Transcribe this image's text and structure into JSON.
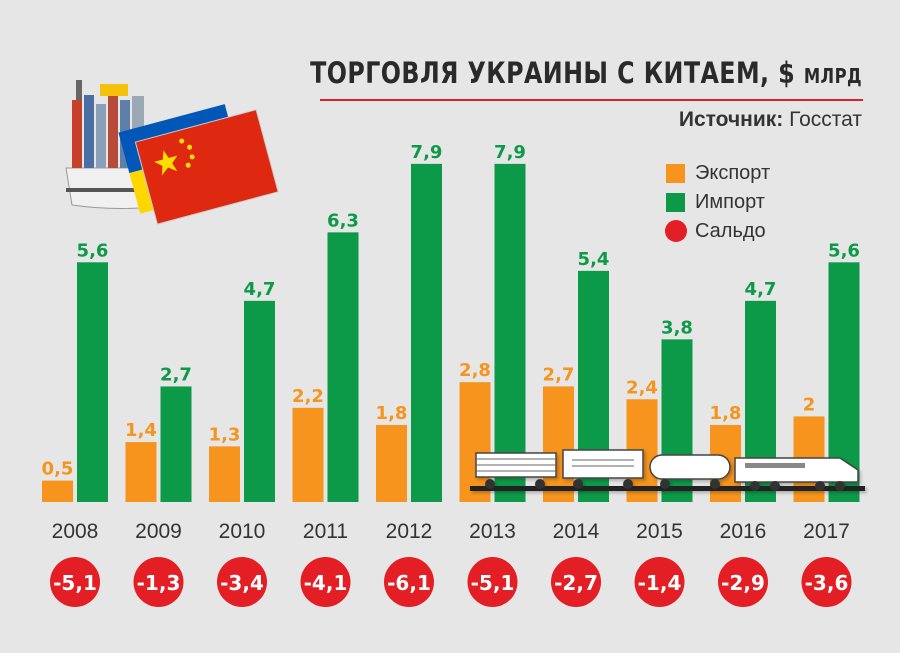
{
  "title": "ТОРГОВЛЯ УКРАИНЫ С КИТАЕМ, $",
  "title_unit": "МЛРД",
  "source_label": "Источник:",
  "source_value": "Госстат",
  "colors": {
    "export": "#f7941d",
    "import": "#0d9a48",
    "saldo": "#e31e24",
    "accent_rule": "#d8232a"
  },
  "legend": {
    "export": "Экспорт",
    "import": "Импорт",
    "saldo": "Сальдо"
  },
  "illustrations": [
    "container-ship-icon",
    "ukraine-flag-icon",
    "china-flag-icon",
    "freight-train-icon"
  ],
  "chart_data": {
    "type": "bar",
    "categories": [
      "2008",
      "2009",
      "2010",
      "2011",
      "2012",
      "2013",
      "2014",
      "2015",
      "2016",
      "2017"
    ],
    "series": [
      {
        "name": "Экспорт",
        "values": [
          0.5,
          1.4,
          1.3,
          2.2,
          1.8,
          2.8,
          2.7,
          2.4,
          1.8,
          2
        ],
        "labels": [
          "0,5",
          "1,4",
          "1,3",
          "2,2",
          "1,8",
          "2,8",
          "2,7",
          "2,4",
          "1,8",
          "2"
        ]
      },
      {
        "name": "Импорт",
        "values": [
          5.6,
          2.7,
          4.7,
          6.3,
          7.9,
          7.9,
          5.4,
          3.8,
          4.7,
          5.6
        ],
        "labels": [
          "5,6",
          "2,7",
          "4,7",
          "6,3",
          "7,9",
          "7,9",
          "5,4",
          "3,8",
          "4,7",
          "5,6"
        ]
      },
      {
        "name": "Сальдо",
        "values": [
          -5.1,
          -1.3,
          -3.4,
          -4.1,
          -6.1,
          -5.1,
          -2.7,
          -1.4,
          -2.9,
          -3.6
        ],
        "labels": [
          "-5,1",
          "-1,3",
          "-3,4",
          "-4,1",
          "-6,1",
          "-5,1",
          "-2,7",
          "-1,4",
          "-2,9",
          "-3,6"
        ]
      }
    ],
    "ylim": [
      0,
      8.5
    ],
    "grid": false,
    "legend_position": "top-right"
  }
}
